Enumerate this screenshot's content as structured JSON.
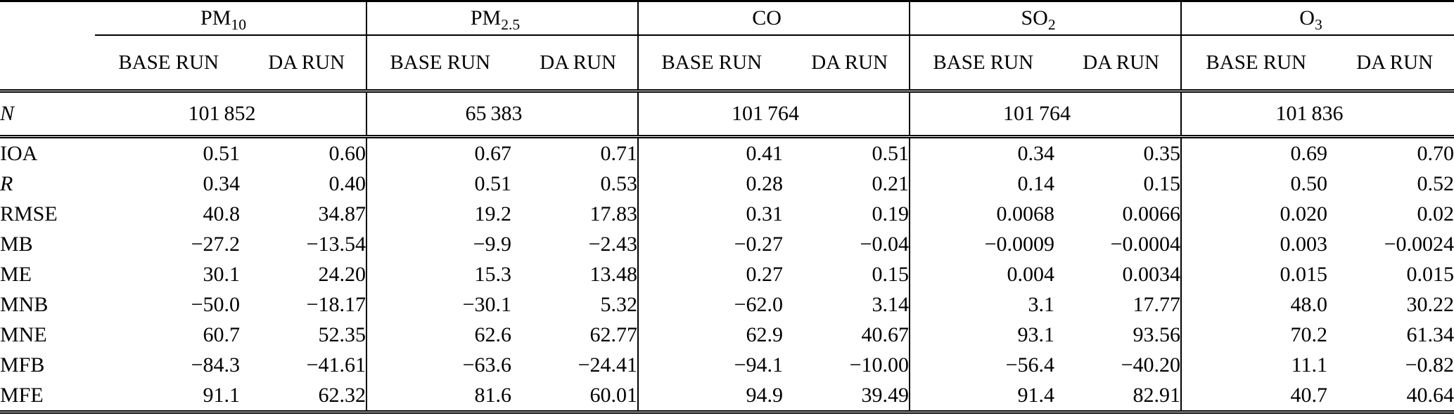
{
  "table": {
    "groups": [
      {
        "name": "PM",
        "sub": "10"
      },
      {
        "name": "PM",
        "sub": "2.5"
      },
      {
        "name": "CO",
        "sub": ""
      },
      {
        "name": "SO",
        "sub": "2"
      },
      {
        "name": "O",
        "sub": "3"
      }
    ],
    "run_headers": [
      "BASE RUN",
      "DA RUN"
    ],
    "n_row": {
      "label": "N",
      "values": [
        "101 852",
        "65 383",
        "101 764",
        "101 764",
        "101 836"
      ]
    },
    "metric_rows": [
      {
        "label": "IOA",
        "italic": false,
        "values": [
          "0.51",
          "0.60",
          "0.67",
          "0.71",
          "0.41",
          "0.51",
          "0.34",
          "0.35",
          "0.69",
          "0.70"
        ]
      },
      {
        "label": "R",
        "italic": true,
        "values": [
          "0.34",
          "0.40",
          "0.51",
          "0.53",
          "0.28",
          "0.21",
          "0.14",
          "0.15",
          "0.50",
          "0.52"
        ]
      },
      {
        "label": "RMSE",
        "italic": false,
        "values": [
          "40.8",
          "34.87",
          "19.2",
          "17.83",
          "0.31",
          "0.19",
          "0.0068",
          "0.0066",
          "0.020",
          "0.02"
        ]
      },
      {
        "label": "MB",
        "italic": false,
        "values": [
          "−27.2",
          "−13.54",
          "−9.9",
          "−2.43",
          "−0.27",
          "−0.04",
          "−0.0009",
          "−0.0004",
          "0.003",
          "−0.0024"
        ]
      },
      {
        "label": "ME",
        "italic": false,
        "values": [
          "30.1",
          "24.20",
          "15.3",
          "13.48",
          "0.27",
          "0.15",
          "0.004",
          "0.0034",
          "0.015",
          "0.015"
        ]
      },
      {
        "label": "MNB",
        "italic": false,
        "values": [
          "−50.0",
          "−18.17",
          "−30.1",
          "5.32",
          "−62.0",
          "3.14",
          "3.1",
          "17.77",
          "48.0",
          "30.22"
        ]
      },
      {
        "label": "MNE",
        "italic": false,
        "values": [
          "60.7",
          "52.35",
          "62.6",
          "62.77",
          "62.9",
          "40.67",
          "93.1",
          "93.56",
          "70.2",
          "61.34"
        ]
      },
      {
        "label": "MFB",
        "italic": false,
        "values": [
          "−84.3",
          "−41.61",
          "−63.6",
          "−24.41",
          "−94.1",
          "−10.00",
          "−56.4",
          "−40.20",
          "11.1",
          "−0.82"
        ]
      },
      {
        "label": "MFE",
        "italic": false,
        "values": [
          "91.1",
          "62.32",
          "81.6",
          "60.01",
          "94.9",
          "39.49",
          "91.4",
          "82.91",
          "40.7",
          "40.64"
        ]
      }
    ]
  }
}
